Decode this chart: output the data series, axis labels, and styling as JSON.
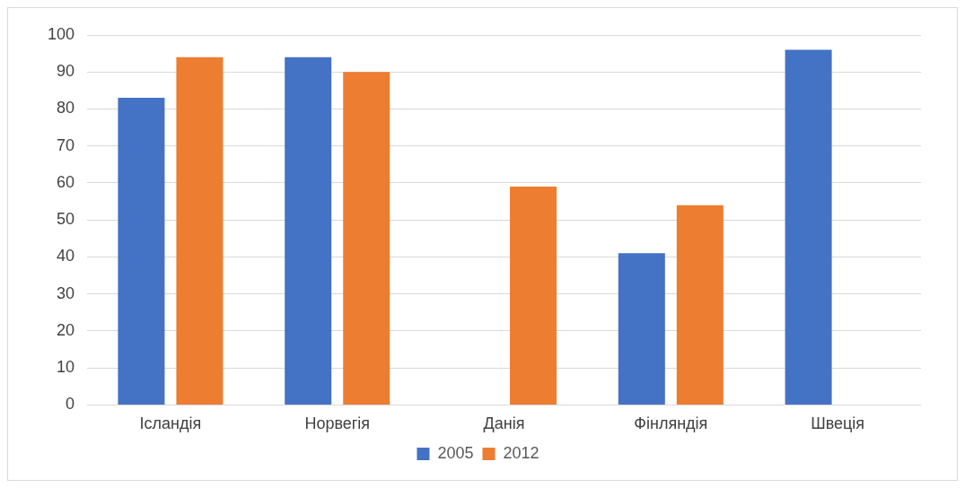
{
  "chart_data": {
    "type": "bar",
    "categories": [
      "Ісландія",
      "Норвегія",
      "Данія",
      "Фінляндія",
      "Швеція"
    ],
    "series": [
      {
        "name": "2005",
        "color": "#4472c4",
        "values": [
          83,
          94,
          null,
          41,
          96
        ]
      },
      {
        "name": "2012",
        "color": "#ed7d31",
        "values": [
          94,
          90,
          59,
          54,
          null
        ]
      }
    ],
    "ylim": [
      0,
      100
    ],
    "yticks": [
      0,
      10,
      20,
      30,
      40,
      50,
      60,
      70,
      80,
      90,
      100
    ],
    "grid": "y",
    "legend": "bottom"
  }
}
